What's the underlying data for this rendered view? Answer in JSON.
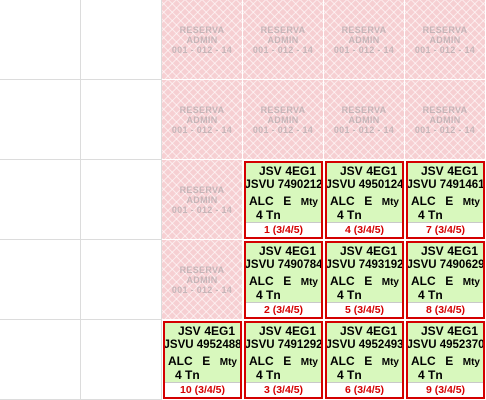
{
  "reserve_label": {
    "line1": "RESERVA",
    "line2": "ADMIN",
    "line3": "001 - 012 - 14"
  },
  "containers": [
    {
      "col": 3,
      "row": 2,
      "type": "JSV",
      "size_code": "4EG1",
      "number": "JSVU 7490212",
      "terminal": "ALC",
      "status": "E",
      "load": "Mty",
      "weight": "4 Tn",
      "slot": "1 (3/4/5)"
    },
    {
      "col": 4,
      "row": 2,
      "type": "JSV",
      "size_code": "4EG1",
      "number": "JSVU 4950124",
      "terminal": "ALC",
      "status": "E",
      "load": "Mty",
      "weight": "4 Tn",
      "slot": "4 (3/4/5)"
    },
    {
      "col": 5,
      "row": 2,
      "type": "JSV",
      "size_code": "4EG1",
      "number": "JSVU 7491461",
      "terminal": "ALC",
      "status": "E",
      "load": "Mty",
      "weight": "4 Tn",
      "slot": "7 (3/4/5)"
    },
    {
      "col": 3,
      "row": 3,
      "type": "JSV",
      "size_code": "4EG1",
      "number": "JSVU 7490784",
      "terminal": "ALC",
      "status": "E",
      "load": "Mty",
      "weight": "4 Tn",
      "slot": "2 (3/4/5)"
    },
    {
      "col": 4,
      "row": 3,
      "type": "JSV",
      "size_code": "4EG1",
      "number": "JSVU 7493192",
      "terminal": "ALC",
      "status": "E",
      "load": "Mty",
      "weight": "4 Tn",
      "slot": "5 (3/4/5)"
    },
    {
      "col": 5,
      "row": 3,
      "type": "JSV",
      "size_code": "4EG1",
      "number": "JSVU 7490629",
      "terminal": "ALC",
      "status": "E",
      "load": "Mty",
      "weight": "4 Tn",
      "slot": "8 (3/4/5)"
    },
    {
      "col": 2,
      "row": 4,
      "type": "JSV",
      "size_code": "4EG1",
      "number": "JSVU 4952488",
      "terminal": "ALC",
      "status": "E",
      "load": "Mty",
      "weight": "4 Tn",
      "slot": "10 (3/4/5)"
    },
    {
      "col": 3,
      "row": 4,
      "type": "JSV",
      "size_code": "4EG1",
      "number": "JSVU 7491292",
      "terminal": "ALC",
      "status": "E",
      "load": "Mty",
      "weight": "4 Tn",
      "slot": "3 (3/4/5)"
    },
    {
      "col": 4,
      "row": 4,
      "type": "JSV",
      "size_code": "4EG1",
      "number": "JSVU 4952493",
      "terminal": "ALC",
      "status": "E",
      "load": "Mty",
      "weight": "4 Tn",
      "slot": "6 (3/4/5)"
    },
    {
      "col": 5,
      "row": 4,
      "type": "JSV",
      "size_code": "4EG1",
      "number": "JSVU 4952370",
      "terminal": "ALC",
      "status": "E",
      "load": "Mty",
      "weight": "4 Tn",
      "slot": "9 (3/4/5)"
    }
  ],
  "reserved_cells": [
    {
      "col": 2,
      "row": 0
    },
    {
      "col": 3,
      "row": 0
    },
    {
      "col": 4,
      "row": 0
    },
    {
      "col": 5,
      "row": 0
    },
    {
      "col": 2,
      "row": 1
    },
    {
      "col": 3,
      "row": 1
    },
    {
      "col": 4,
      "row": 1
    },
    {
      "col": 5,
      "row": 1
    },
    {
      "col": 2,
      "row": 2
    },
    {
      "col": 2,
      "row": 3
    }
  ],
  "colors": {
    "reserve_bg": "#f6cfd2",
    "reserve_text": "#c5b5b8",
    "container_bg": "#d8f8bd",
    "container_border": "#d40000",
    "grid_line": "#dcdcdc"
  }
}
